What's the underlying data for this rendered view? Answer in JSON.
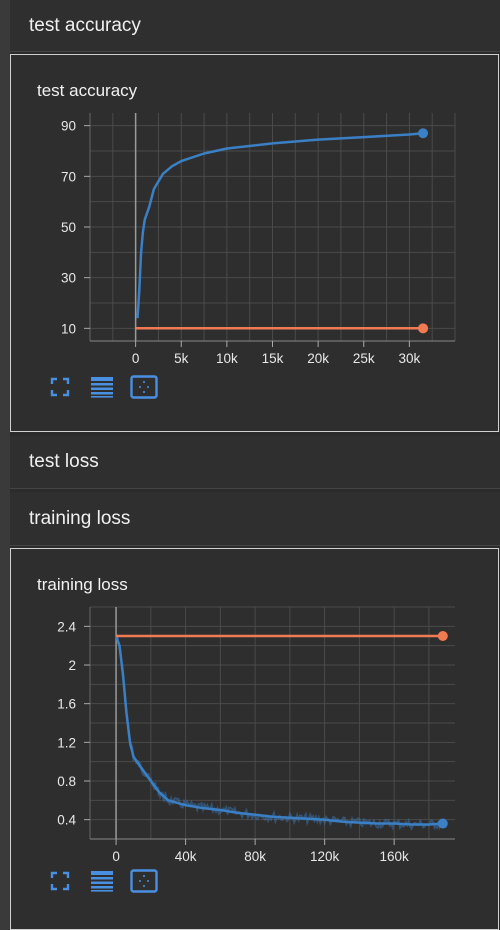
{
  "sections": [
    {
      "title": "test accuracy",
      "expanded": true
    },
    {
      "title": "test loss",
      "expanded": false
    },
    {
      "title": "training loss",
      "expanded": true
    }
  ],
  "toolbar": {
    "icons": [
      "fit-to-data-icon",
      "data-table-icon",
      "toggle-y-axis-icon"
    ]
  },
  "colors": {
    "blue_series": "#3b7fc4",
    "orange_series": "#f07b52",
    "grid": "#5a5a5a",
    "accent": "#4a90e2"
  },
  "chart_data": [
    {
      "type": "line",
      "title": "test accuracy",
      "xlabel": "",
      "ylabel": "",
      "xlim": [
        -5000,
        35000
      ],
      "ylim": [
        5,
        95
      ],
      "x_ticks": [
        0,
        5000,
        10000,
        15000,
        20000,
        25000,
        30000
      ],
      "x_tick_labels": [
        "0",
        "5k",
        "10k",
        "15k",
        "20k",
        "25k",
        "30k"
      ],
      "y_ticks": [
        10,
        30,
        50,
        70,
        90
      ],
      "y_tick_labels": [
        "10",
        "30",
        "50",
        "70",
        "90"
      ],
      "grid": true,
      "legend": "none",
      "series": [
        {
          "color": "#3b7fc4",
          "x": [
            200,
            400,
            600,
            800,
            1000,
            1500,
            2000,
            3000,
            4000,
            5000,
            7500,
            10000,
            15000,
            20000,
            25000,
            30000,
            31500
          ],
          "y": [
            14,
            25,
            40,
            48,
            53,
            58,
            65,
            71,
            74,
            76,
            79,
            81,
            83,
            84.5,
            85.5,
            86.5,
            87
          ]
        },
        {
          "color": "#f07b52",
          "x": [
            0,
            31500
          ],
          "y": [
            10,
            10
          ]
        }
      ]
    },
    {
      "type": "line",
      "title": "training loss",
      "xlabel": "",
      "ylabel": "",
      "xlim": [
        -15000,
        195000
      ],
      "ylim": [
        0.2,
        2.6
      ],
      "x_ticks": [
        0,
        40000,
        80000,
        120000,
        160000
      ],
      "x_tick_labels": [
        "0",
        "40k",
        "80k",
        "120k",
        "160k"
      ],
      "y_ticks": [
        0.4,
        0.8,
        1.2,
        1.6,
        2.0,
        2.4
      ],
      "y_tick_labels": [
        "0.4",
        "0.8",
        "1.2",
        "1.6",
        "2",
        "2.4"
      ],
      "grid": true,
      "legend": "none",
      "series": [
        {
          "color": "#3b7fc4",
          "x": [
            0,
            2000,
            4000,
            6000,
            8000,
            10000,
            14000,
            20000,
            25000,
            30000,
            40000,
            50000,
            60000,
            70000,
            80000,
            90000,
            100000,
            110000,
            120000,
            130000,
            140000,
            150000,
            160000,
            170000,
            180000,
            188000
          ],
          "y": [
            2.3,
            2.2,
            1.9,
            1.5,
            1.2,
            1.05,
            0.95,
            0.8,
            0.68,
            0.6,
            0.55,
            0.52,
            0.5,
            0.47,
            0.45,
            0.43,
            0.42,
            0.41,
            0.4,
            0.38,
            0.37,
            0.36,
            0.36,
            0.35,
            0.35,
            0.36
          ]
        },
        {
          "color": "#f07b52",
          "x": [
            0,
            188000
          ],
          "y": [
            2.3,
            2.3
          ]
        }
      ]
    }
  ]
}
